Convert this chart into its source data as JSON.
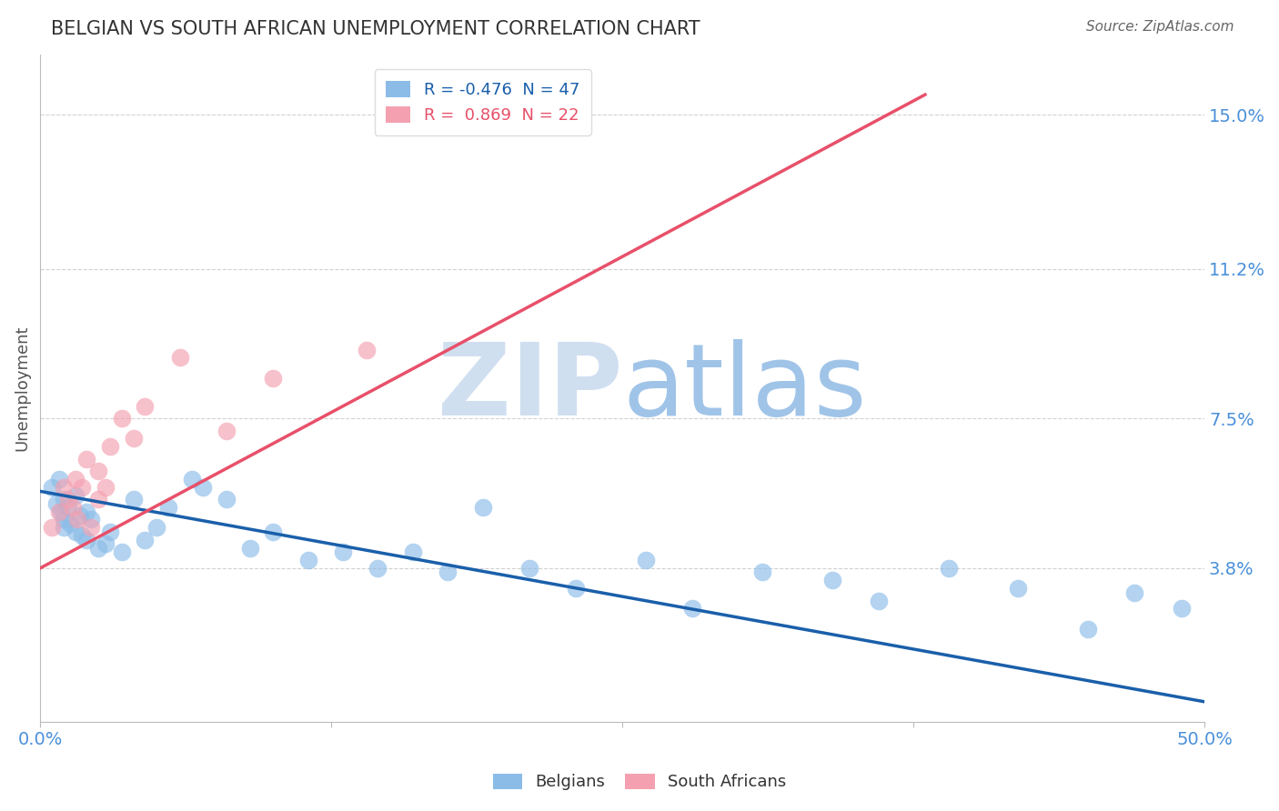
{
  "title": "BELGIAN VS SOUTH AFRICAN UNEMPLOYMENT CORRELATION CHART",
  "source": "Source: ZipAtlas.com",
  "ylabel": "Unemployment",
  "xlim": [
    0.0,
    0.5
  ],
  "ylim": [
    0.0,
    0.165
  ],
  "yticks": [
    0.038,
    0.075,
    0.112,
    0.15
  ],
  "ytick_labels": [
    "3.8%",
    "7.5%",
    "11.2%",
    "15.0%"
  ],
  "xticks": [
    0.0,
    0.125,
    0.25,
    0.375,
    0.5
  ],
  "xtick_labels": [
    "0.0%",
    "",
    "",
    "",
    "50.0%"
  ],
  "belgian_R": -0.476,
  "belgian_N": 47,
  "sa_R": 0.869,
  "sa_N": 22,
  "belgian_color": "#8bbce8",
  "sa_color": "#f4a0b0",
  "belgian_line_color": "#1a5faa",
  "sa_line_color": "#e8506a",
  "grid_color": "#cccccc",
  "title_color": "#333333",
  "axis_label_color": "#555555",
  "right_tick_color": "#4a90d9",
  "source_color": "#666666",
  "watermark_color_zip": "#d0dff0",
  "watermark_color_atlas": "#a0c4e8",
  "legend_label_belgian": "Belgians",
  "legend_label_sa": "South Africans",
  "belgians_x": [
    0.005,
    0.007,
    0.008,
    0.009,
    0.01,
    0.01,
    0.01,
    0.012,
    0.013,
    0.015,
    0.015,
    0.017,
    0.018,
    0.02,
    0.02,
    0.022,
    0.025,
    0.028,
    0.03,
    0.035,
    0.04,
    0.045,
    0.05,
    0.055,
    0.065,
    0.07,
    0.08,
    0.09,
    0.1,
    0.115,
    0.13,
    0.145,
    0.16,
    0.175,
    0.19,
    0.21,
    0.23,
    0.26,
    0.28,
    0.31,
    0.34,
    0.36,
    0.39,
    0.42,
    0.45,
    0.47,
    0.49
  ],
  "belgians_y": [
    0.058,
    0.054,
    0.06,
    0.052,
    0.055,
    0.05,
    0.048,
    0.053,
    0.049,
    0.056,
    0.047,
    0.051,
    0.046,
    0.052,
    0.045,
    0.05,
    0.043,
    0.044,
    0.047,
    0.042,
    0.055,
    0.045,
    0.048,
    0.053,
    0.06,
    0.058,
    0.055,
    0.043,
    0.047,
    0.04,
    0.042,
    0.038,
    0.042,
    0.037,
    0.053,
    0.038,
    0.033,
    0.04,
    0.028,
    0.037,
    0.035,
    0.03,
    0.038,
    0.033,
    0.023,
    0.032,
    0.028
  ],
  "sa_x": [
    0.005,
    0.008,
    0.01,
    0.012,
    0.014,
    0.015,
    0.016,
    0.018,
    0.02,
    0.022,
    0.025,
    0.025,
    0.028,
    0.03,
    0.035,
    0.04,
    0.045,
    0.06,
    0.08,
    0.1,
    0.14,
    0.18
  ],
  "sa_y": [
    0.048,
    0.052,
    0.058,
    0.055,
    0.053,
    0.06,
    0.05,
    0.058,
    0.065,
    0.048,
    0.062,
    0.055,
    0.058,
    0.068,
    0.075,
    0.07,
    0.078,
    0.09,
    0.072,
    0.085,
    0.092,
    0.148
  ],
  "belgian_trend_x": [
    0.0,
    0.5
  ],
  "belgian_trend_y": [
    0.057,
    0.005
  ],
  "sa_trend_x": [
    0.0,
    0.38
  ],
  "sa_trend_y": [
    0.038,
    0.155
  ]
}
